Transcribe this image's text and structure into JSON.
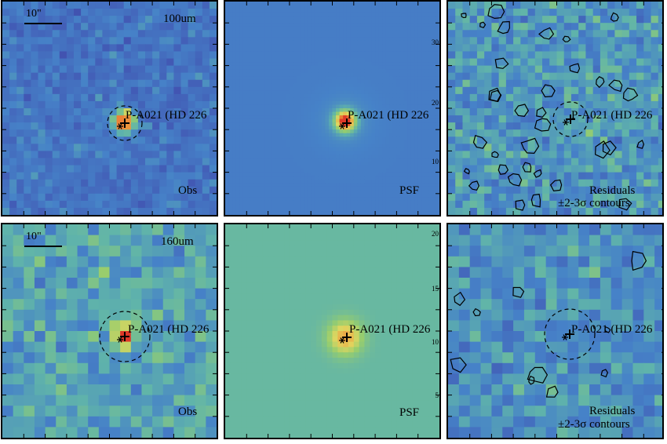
{
  "rows": [
    {
      "band_label": "100um",
      "scale_bar_label": "10\"",
      "source_label": "P-A021 (HD 226",
      "obs_label": "Obs",
      "psf_label": "PSF",
      "residual_label_line1": "Residuals",
      "residual_label_line2": "±2-3σ contours",
      "psf_axis_ticks": [
        "30",
        "20",
        "10"
      ]
    },
    {
      "band_label": "160um",
      "scale_bar_label": "10\"",
      "source_label": "P-A021 (HD 226",
      "obs_label": "Obs",
      "psf_label": "PSF",
      "residual_label_line1": "Residuals",
      "residual_label_line2": "±2-3σ contours",
      "psf_axis_ticks": [
        "20",
        "15",
        "10",
        "5"
      ]
    }
  ],
  "colors": {
    "background_blue": "#4a7cc8",
    "background_green": "#74b887",
    "peak_red": "#e0462a",
    "contour": "#000000"
  }
}
